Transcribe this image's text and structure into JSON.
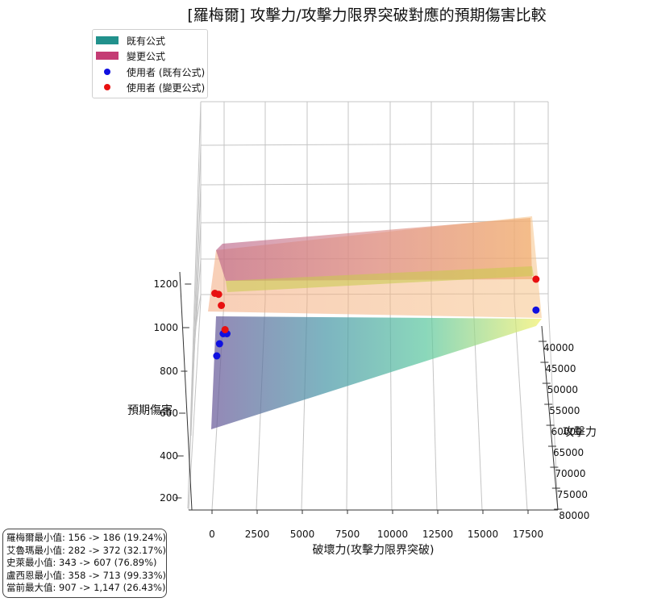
{
  "chart_data": {
    "type": "surface3d",
    "title": "[羅梅爾] 攻擊力/攻擊力限界突破對應的預期傷害比較",
    "xlabel": "破壞力(攻擊力限界突破)",
    "ylabel": "攻擊力",
    "zlabel": "預期傷害",
    "x_ticks": [
      "0",
      "2500",
      "5000",
      "7500",
      "10000",
      "12500",
      "15000",
      "17500"
    ],
    "y_ticks": [
      "40000",
      "45000",
      "50000",
      "55000",
      "60000",
      "65000",
      "70000",
      "75000",
      "80000"
    ],
    "z_ticks": [
      "200",
      "400",
      "600",
      "800",
      "1000",
      "1200"
    ],
    "xlim": [
      0,
      18000
    ],
    "ylim": [
      40000,
      80000
    ],
    "zlim": [
      200,
      1300
    ],
    "legend": [
      {
        "label": "既有公式",
        "kind": "patch",
        "color": "#21918c"
      },
      {
        "label": "變更公式",
        "kind": "patch",
        "color": "#c43c74"
      },
      {
        "label": "使用者 (既有公式)",
        "kind": "marker",
        "color": "#1010e0"
      },
      {
        "label": "使用者 (變更公式)",
        "kind": "marker",
        "color": "#e81010"
      }
    ],
    "users_existing": [
      {
        "x": 300,
        "y": 41000,
        "z": 920
      },
      {
        "x": 450,
        "y": 41000,
        "z": 980
      },
      {
        "x": 650,
        "y": 41000,
        "z": 1030
      },
      {
        "x": 850,
        "y": 41000,
        "z": 1030
      },
      {
        "x": 17600,
        "y": 41000,
        "z": 1147
      }
    ],
    "users_new": [
      {
        "x": 200,
        "y": 41000,
        "z": 1230
      },
      {
        "x": 400,
        "y": 41000,
        "z": 1225
      },
      {
        "x": 550,
        "y": 41000,
        "z": 1170
      },
      {
        "x": 750,
        "y": 41000,
        "z": 1050
      },
      {
        "x": 17600,
        "y": 41000,
        "z": 1300
      }
    ],
    "annotation": [
      "羅梅爾最小值: 156 -> 186 (19.24%)",
      "艾魯瑪最小值: 282 -> 372 (32.17%)",
      "史萊最小值: 343 -> 607 (76.89%)",
      "盧西恩最小值: 358 -> 713 (99.33%)",
      "當前最大值: 907 -> 1,147 (26.43%)"
    ]
  }
}
